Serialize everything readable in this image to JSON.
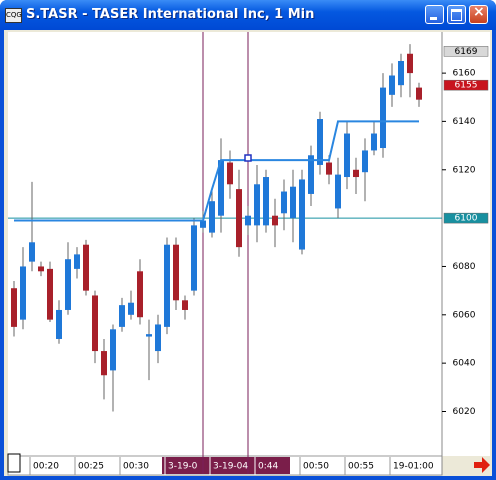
{
  "window": {
    "title": "S.TASR - TASER International Inc, 1 Min"
  },
  "chart_data": {
    "type": "candlestick",
    "categories": [
      null,
      null,
      "00:20",
      null,
      null,
      null,
      null,
      "00:25",
      null,
      null,
      null,
      null,
      "00:30",
      null,
      null,
      null,
      null,
      "3-19-0",
      null,
      null,
      null,
      null,
      "3-19-04",
      null,
      null,
      null,
      null,
      "0:44",
      null,
      null,
      null,
      null,
      "00:50",
      null,
      null,
      null,
      null,
      "00:55",
      null,
      null,
      null,
      null,
      "19-01:00",
      null,
      null,
      null
    ],
    "open": [
      6071,
      6058,
      6082,
      6080,
      6079,
      6050,
      6062,
      6079,
      6089,
      6068,
      6045,
      6037,
      6055,
      6060,
      6078,
      6051,
      6045,
      6055,
      6089,
      6066,
      6070,
      6096,
      6094,
      6101,
      6123,
      6112,
      6097,
      6097,
      6097,
      6101,
      6102,
      6100,
      6087,
      6110,
      6122,
      6123,
      6104,
      6117,
      6120,
      6119,
      6128,
      6129,
      6151,
      6155,
      6168,
      6154
    ],
    "high": [
      6074,
      6088,
      6115,
      6082,
      6082,
      6066,
      6090,
      6088,
      6091,
      6070,
      6050,
      6056,
      6067,
      6070,
      6083,
      6058,
      6060,
      6092,
      6092,
      6068,
      6100,
      6103,
      6112,
      6133,
      6128,
      6120,
      6105,
      6122,
      6120,
      6108,
      6116,
      6120,
      6120,
      6130,
      6144,
      6126,
      6125,
      6140,
      6125,
      6133,
      6140,
      6160,
      6164,
      6168,
      6172,
      6156
    ],
    "low": [
      6051,
      6054,
      6078,
      6076,
      6057,
      6048,
      6060,
      6075,
      6068,
      6040,
      6025,
      6020,
      6053,
      6058,
      6056,
      6033,
      6040,
      6052,
      6062,
      6058,
      6068,
      6094,
      6092,
      6094,
      6108,
      6084,
      6093,
      6090,
      6094,
      6088,
      6095,
      6090,
      6085,
      6105,
      6118,
      6114,
      6100,
      6112,
      6110,
      6107,
      6126,
      6125,
      6146,
      6150,
      6150,
      6146
    ],
    "close": [
      6055,
      6080,
      6090,
      6078,
      6058,
      6062,
      6083,
      6085,
      6070,
      6045,
      6035,
      6054,
      6064,
      6065,
      6059,
      6052,
      6056,
      6089,
      6066,
      6062,
      6097,
      6099,
      6107,
      6124,
      6114,
      6088,
      6101,
      6114,
      6117,
      6097,
      6111,
      6113,
      6116,
      6126,
      6141,
      6118,
      6118,
      6135,
      6117,
      6128,
      6135,
      6154,
      6159,
      6165,
      6160,
      6149
    ],
    "up_color": "#1f78d8",
    "down_color": "#a8202a",
    "indicator": {
      "color": "#2a86e0",
      "values": [
        6099,
        6099,
        6099,
        6099,
        6099,
        6099,
        6099,
        6099,
        6099,
        6099,
        6099,
        6099,
        6099,
        6099,
        6099,
        6099,
        6099,
        6099,
        6099,
        6099,
        6099,
        6099,
        6112,
        6124,
        6124,
        6124,
        6124,
        6124,
        6124,
        6124,
        6124,
        6124,
        6124,
        6124,
        6124,
        6124,
        6140,
        6140,
        6140,
        6140,
        6140,
        6140,
        6140,
        6140,
        6140,
        6140
      ]
    },
    "ylim": [
      6002,
      6177
    ],
    "yticks": [
      6020,
      6040,
      6060,
      6080,
      6120,
      6140,
      6160
    ],
    "price_markers": [
      {
        "value": 6169,
        "color": "#d8d8d8"
      },
      {
        "value": 6155,
        "color": "#c8141e"
      },
      {
        "value": 6100,
        "color": "#1890a0"
      }
    ]
  }
}
